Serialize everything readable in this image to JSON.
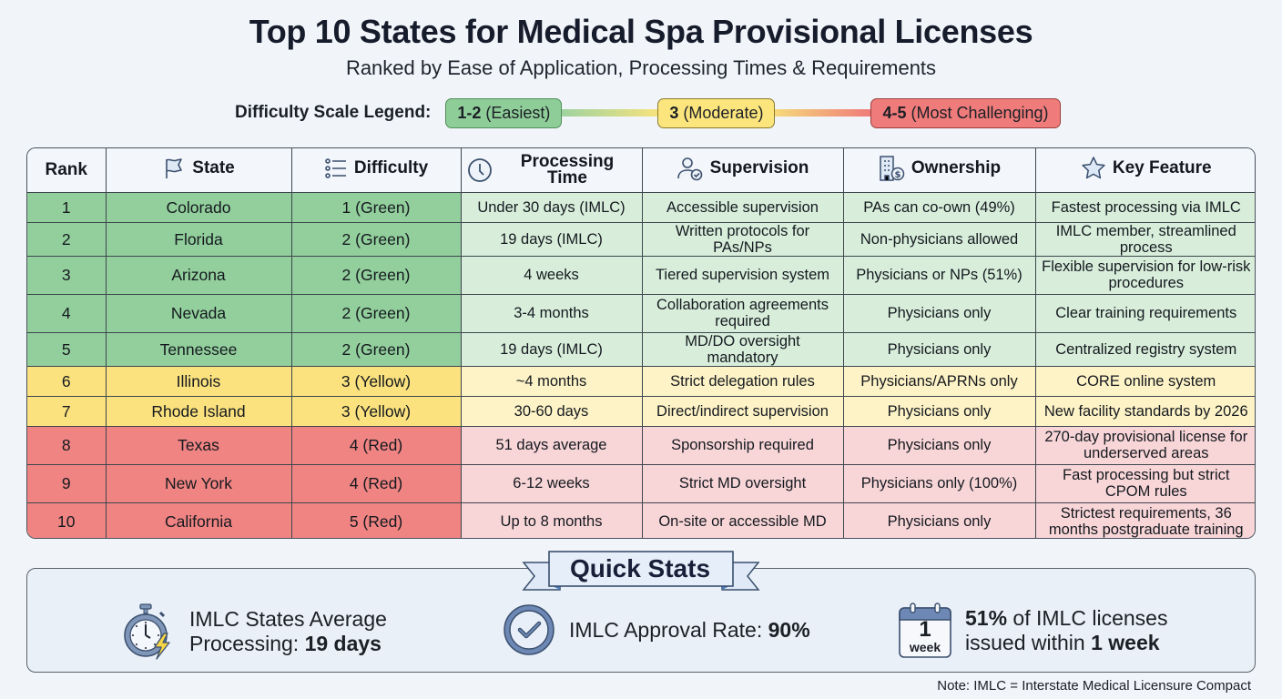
{
  "header": {
    "title": "Top 10 States for Medical Spa Provisional Licenses",
    "subtitle": "Ranked by Ease of Application, Processing Times & Requirements"
  },
  "legend": {
    "label": "Difficulty Scale Legend:",
    "items": [
      {
        "range": "1-2",
        "desc": "(Easiest)",
        "color": "#8fcd98"
      },
      {
        "range": "3",
        "desc": "(Moderate)",
        "color": "#fce57d"
      },
      {
        "range": "4-5",
        "desc": "(Most Challenging)",
        "color": "#ef7c7a"
      }
    ]
  },
  "table": {
    "columns": [
      {
        "label": "Rank",
        "icon": ""
      },
      {
        "label": "State",
        "icon": "flag-icon"
      },
      {
        "label": "Difficulty",
        "icon": "list-icon"
      },
      {
        "label": "Processing Time",
        "icon": "clock-icon"
      },
      {
        "label": "Supervision",
        "icon": "user-check-icon"
      },
      {
        "label": "Ownership",
        "icon": "building-dollar-icon"
      },
      {
        "label": "Key Feature",
        "icon": "star-icon"
      }
    ],
    "rows": [
      {
        "rank": "1",
        "state": "Colorado",
        "difficulty": "1 (Green)",
        "processing": "Under 30 days (IMLC)",
        "supervision": "Accessible supervision",
        "ownership": "PAs can co-own (49%)",
        "feature": "Fastest processing via IMLC",
        "tier": "g"
      },
      {
        "rank": "2",
        "state": "Florida",
        "difficulty": "2 (Green)",
        "processing": "19 days (IMLC)",
        "supervision": "Written protocols for PAs/NPs",
        "ownership": "Non-physicians allowed",
        "feature": "IMLC member, streamlined process",
        "tier": "g"
      },
      {
        "rank": "3",
        "state": "Arizona",
        "difficulty": "2 (Green)",
        "processing": "4 weeks",
        "supervision": "Tiered supervision system",
        "ownership": "Physicians or NPs (51%)",
        "feature": "Flexible supervision for low-risk procedures",
        "tier": "g"
      },
      {
        "rank": "4",
        "state": "Nevada",
        "difficulty": "2 (Green)",
        "processing": "3-4 months",
        "supervision": "Collaboration agreements required",
        "ownership": "Physicians only",
        "feature": "Clear training requirements",
        "tier": "g"
      },
      {
        "rank": "5",
        "state": "Tennessee",
        "difficulty": "2 (Green)",
        "processing": "19 days (IMLC)",
        "supervision": "MD/DO oversight mandatory",
        "ownership": "Physicians only",
        "feature": "Centralized registry system",
        "tier": "g"
      },
      {
        "rank": "6",
        "state": "Illinois",
        "difficulty": "3 (Yellow)",
        "processing": "~4 months",
        "supervision": "Strict delegation rules",
        "ownership": "Physicians/APRNs only",
        "feature": "CORE online system",
        "tier": "y"
      },
      {
        "rank": "7",
        "state": "Rhode Island",
        "difficulty": "3 (Yellow)",
        "processing": "30-60 days",
        "supervision": "Direct/indirect supervision",
        "ownership": "Physicians only",
        "feature": "New facility standards by 2026",
        "tier": "y"
      },
      {
        "rank": "8",
        "state": "Texas",
        "difficulty": "4 (Red)",
        "processing": "51 days average",
        "supervision": "Sponsorship required",
        "ownership": "Physicians only",
        "feature": "270-day provisional license for underserved areas",
        "tier": "r"
      },
      {
        "rank": "9",
        "state": "New York",
        "difficulty": "4 (Red)",
        "processing": "6-12 weeks",
        "supervision": "Strict MD oversight",
        "ownership": "Physicians only (100%)",
        "feature": "Fast processing but strict CPOM rules",
        "tier": "r"
      },
      {
        "rank": "10",
        "state": "California",
        "difficulty": "5 (Red)",
        "processing": "Up to 8 months",
        "supervision": "On-site or accessible MD",
        "ownership": "Physicians only",
        "feature": "Strictest requirements, 36 months postgraduate training",
        "tier": "r"
      }
    ]
  },
  "quick_stats": {
    "title": "Quick Stats",
    "items": [
      {
        "icon": "stopwatch-lightning-icon",
        "line1": "IMLC States Average",
        "line2_prefix": "Processing: ",
        "line2_bold": "19 days"
      },
      {
        "icon": "check-circle-icon",
        "prefix": "IMLC Approval Rate: ",
        "bold": "90%"
      },
      {
        "icon": "calendar-week-icon",
        "calendar_number": "1",
        "calendar_unit": "week",
        "line1_bold": "51%",
        "line1_rest": " of IMLC licenses",
        "line2_prefix": "issued within ",
        "line2_bold": "1 week"
      }
    ]
  },
  "note": "Note: IMLC = Interstate Medical Licensure Compact",
  "chart_data": {
    "type": "table",
    "title": "Top 10 States for Medical Spa Provisional Licenses",
    "subtitle": "Ranked by Ease of Application, Processing Times & Requirements",
    "legend": [
      "1-2 (Easiest) - Green",
      "3 (Moderate) - Yellow",
      "4-5 (Most Challenging) - Red"
    ],
    "columns": [
      "Rank",
      "State",
      "Difficulty",
      "Processing Time",
      "Supervision",
      "Ownership",
      "Key Feature"
    ],
    "rows": [
      [
        1,
        "Colorado",
        1,
        "Under 30 days (IMLC)",
        "Accessible supervision",
        "PAs can co-own (49%)",
        "Fastest processing via IMLC"
      ],
      [
        2,
        "Florida",
        2,
        "19 days (IMLC)",
        "Written protocols for PAs/NPs",
        "Non-physicians allowed",
        "IMLC member, streamlined process"
      ],
      [
        3,
        "Arizona",
        2,
        "4 weeks",
        "Tiered supervision system",
        "Physicians or NPs (51%)",
        "Flexible supervision for low-risk procedures"
      ],
      [
        4,
        "Nevada",
        2,
        "3-4 months",
        "Collaboration agreements required",
        "Physicians only",
        "Clear training requirements"
      ],
      [
        5,
        "Tennessee",
        2,
        "19 days (IMLC)",
        "MD/DO oversight mandatory",
        "Physicians only",
        "Centralized registry system"
      ],
      [
        6,
        "Illinois",
        3,
        "~4 months",
        "Strict delegation rules",
        "Physicians/APRNs only",
        "CORE online system"
      ],
      [
        7,
        "Rhode Island",
        3,
        "30-60 days",
        "Direct/indirect supervision",
        "Physicians only",
        "New facility standards by 2026"
      ],
      [
        8,
        "Texas",
        4,
        "51 days average",
        "Sponsorship required",
        "Physicians only",
        "270-day provisional license for underserved areas"
      ],
      [
        9,
        "New York",
        4,
        "6-12 weeks",
        "Strict MD oversight",
        "Physicians only (100%)",
        "Fast processing but strict CPOM rules"
      ],
      [
        10,
        "California",
        5,
        "Up to 8 months",
        "On-site or accessible MD",
        "Physicians only",
        "Strictest requirements, 36 months postgraduate training"
      ]
    ],
    "quick_stats": {
      "imlc_avg_processing_days": 19,
      "imlc_approval_rate_pct": 90,
      "imlc_licenses_within_1_week_pct": 51
    }
  }
}
